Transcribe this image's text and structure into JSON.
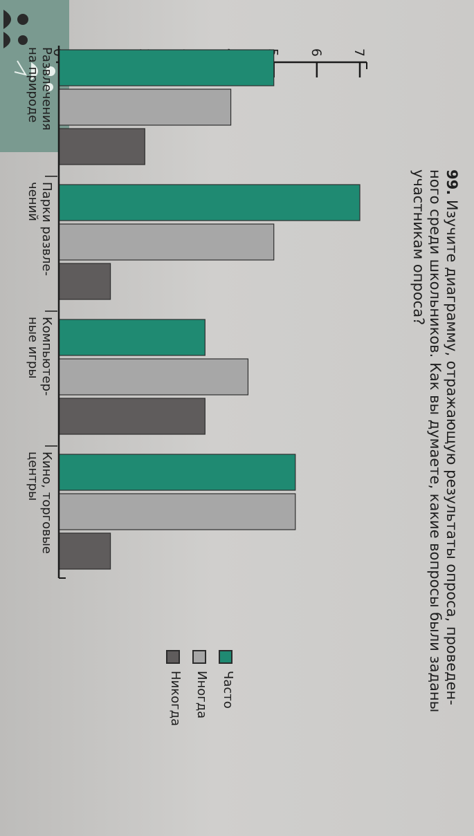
{
  "task": {
    "number": "99.",
    "lines": [
      "Изучите диаграмму, отражающую результаты опроса, проведен-",
      "ного среди школьников. Как вы думаете, какие вопросы были заданы",
      "участникам опроса?"
    ]
  },
  "colors": {
    "often": "#1f8a72",
    "sometimes": "#a7a7a7",
    "never": "#5f5c5c"
  },
  "chart_data": {
    "type": "bar",
    "orientation": "vertical",
    "categories": [
      [
        "Развлечения",
        "на природе"
      ],
      [
        "Парки развле-",
        "чений"
      ],
      [
        "Компьютер-",
        "ные игры"
      ],
      [
        "Кино, торговые",
        "центры"
      ]
    ],
    "series": [
      {
        "name": "Часто",
        "values": [
          5,
          7,
          3.4,
          5.5
        ]
      },
      {
        "name": "Иногда",
        "values": [
          4,
          5,
          4.4,
          5.5
        ]
      },
      {
        "name": "Никогда",
        "values": [
          2,
          1.2,
          3.4,
          1.2
        ]
      }
    ],
    "yticks": [
      "0",
      "1",
      "2",
      "3",
      "4",
      "5",
      "6",
      "7"
    ],
    "ylim": [
      0,
      7
    ],
    "legend": "right",
    "grid": false
  }
}
